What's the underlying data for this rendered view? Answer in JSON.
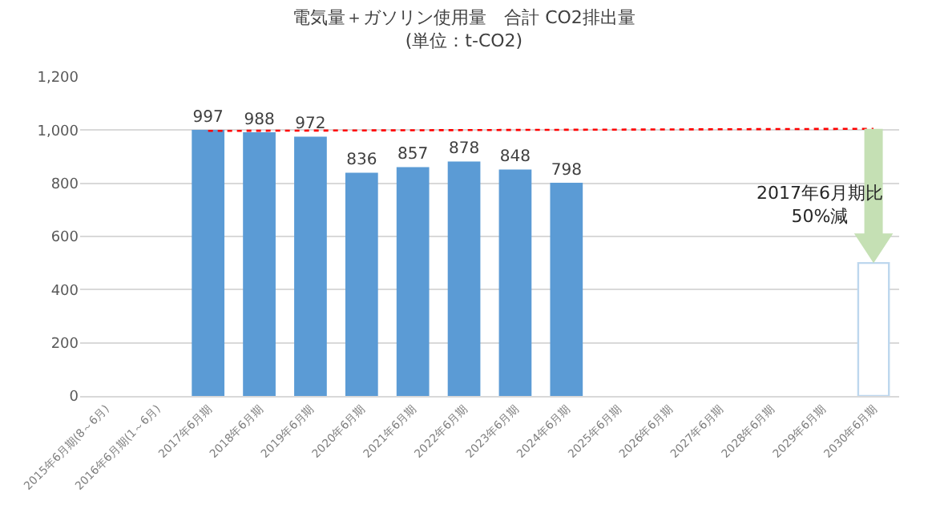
{
  "chart_data": {
    "type": "bar",
    "title": "電気量＋ガソリン使用量　合計 CO2排出量",
    "subtitle": "(単位：t-CO2)",
    "categories": [
      "2015年6月期(8～6月)",
      "2016年6月期(1～6月)",
      "2017年6月期",
      "2018年6月期",
      "2019年6月期",
      "2020年6月期",
      "2021年6月期",
      "2022年6月期",
      "2023年6月期",
      "2024年6月期",
      "2025年6月期",
      "2026年6月期",
      "2027年6月期",
      "2028年6月期",
      "2029年6月期",
      "2030年6月期"
    ],
    "series": [
      {
        "colors": [
          "#5b9bd5",
          "#5b9bd5",
          "#5b9bd5",
          "#5b9bd5",
          "#5b9bd5",
          "#5b9bd5",
          "#5b9bd5",
          "#5b9bd5",
          "#5b9bd5",
          "#5b9bd5",
          "#5b9bd5",
          "#5b9bd5",
          "#5b9bd5",
          "#5b9bd5",
          "#5b9bd5",
          "#ffffff"
        ],
        "values": [
          null,
          null,
          997,
          988,
          972,
          836,
          857,
          878,
          848,
          798,
          null,
          null,
          null,
          null,
          null,
          500
        ],
        "value_labels": [
          null,
          null,
          "997",
          "988",
          "972",
          "836",
          "857",
          "878",
          "848",
          "798",
          null,
          null,
          null,
          null,
          null,
          null
        ]
      },
      {
        "type": "line",
        "color": "#ff0000",
        "line_style": "dotted",
        "x": [
          "2017年6月期",
          "2030年6月期"
        ],
        "values": [
          997,
          1005
        ]
      }
    ],
    "ylim": [
      0,
      1200
    ],
    "yticks": [
      0,
      {
        "value": 200,
        "label": "200"
      },
      {
        "value": 400,
        "label": "400"
      },
      {
        "value": 600,
        "label": "600"
      },
      {
        "value": 800,
        "label": "800"
      },
      {
        "value": 1000,
        "label": "1,000"
      },
      {
        "value": 1200,
        "label": "1,200"
      }
    ],
    "grid": "y",
    "legend": false,
    "annotations": [
      "2017年6月期比\n50%減"
    ]
  }
}
